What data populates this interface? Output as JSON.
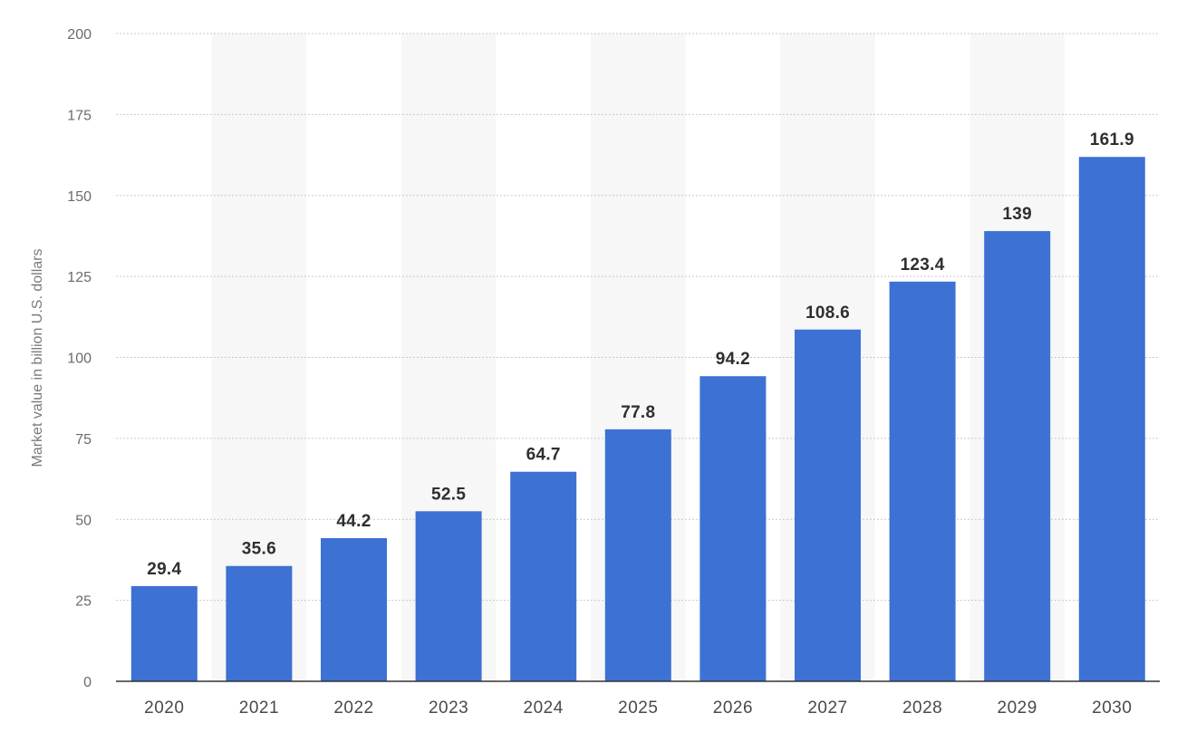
{
  "chart_data": {
    "type": "bar",
    "title": "",
    "xlabel": "",
    "ylabel": "Market value in billion U.S. dollars",
    "categories": [
      "2020",
      "2021",
      "2022",
      "2023",
      "2024",
      "2025",
      "2026",
      "2027",
      "2028",
      "2029",
      "2030"
    ],
    "values": [
      29.4,
      35.6,
      44.2,
      52.5,
      64.7,
      77.8,
      94.2,
      108.6,
      123.4,
      139,
      161.9
    ],
    "value_labels": [
      "29.4",
      "35.6",
      "44.2",
      "52.5",
      "64.7",
      "77.8",
      "94.2",
      "108.6",
      "123.4",
      "139",
      "161.9"
    ],
    "ylim": [
      0,
      200
    ],
    "yticks": [
      0,
      25,
      50,
      75,
      100,
      125,
      150,
      175,
      200
    ],
    "grid": true,
    "legend": "none",
    "colors": {
      "bar": "#3d71d3",
      "grid": "#c9c9c9",
      "band": "#f7f7f7",
      "axis": "#333333"
    }
  }
}
